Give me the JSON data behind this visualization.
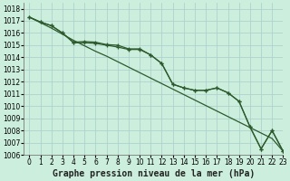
{
  "title": "Graphe pression niveau de la mer (hPa)",
  "bg_color": "#cceedd",
  "grid_color": "#aacccc",
  "line_color": "#2d5a2d",
  "xlim": [
    -0.5,
    23
  ],
  "ylim": [
    1006,
    1018.5
  ],
  "yticks": [
    1006,
    1007,
    1008,
    1009,
    1010,
    1011,
    1012,
    1013,
    1014,
    1015,
    1016,
    1017,
    1018
  ],
  "xticks": [
    0,
    1,
    2,
    3,
    4,
    5,
    6,
    7,
    8,
    9,
    10,
    11,
    12,
    13,
    14,
    15,
    16,
    17,
    18,
    19,
    20,
    21,
    22,
    23
  ],
  "series_marked1": [
    1017.3,
    1016.9,
    1016.6,
    1016.0,
    1015.2,
    1015.2,
    1015.15,
    1015.0,
    1014.85,
    1014.65,
    1014.65,
    1014.2,
    1013.5,
    1011.8,
    1011.5,
    1011.3,
    1011.3,
    1011.5,
    1011.1,
    1010.4,
    1008.3,
    1006.5,
    1008.0,
    1006.3
  ],
  "series_marked2": [
    1017.3,
    1016.9,
    1016.6,
    1016.0,
    1015.25,
    1015.3,
    1015.25,
    1015.05,
    1015.0,
    1014.7,
    1014.7,
    1014.2,
    1013.5,
    1011.8,
    1011.5,
    1011.3,
    1011.3,
    1011.5,
    1011.1,
    1010.4,
    1008.3,
    1006.5,
    1008.0,
    1006.3
  ],
  "series_plain": [
    1017.3,
    1016.85,
    1016.4,
    1015.9,
    1015.4,
    1014.95,
    1014.5,
    1014.1,
    1013.65,
    1013.2,
    1012.75,
    1012.3,
    1011.85,
    1011.4,
    1010.95,
    1010.5,
    1010.05,
    1009.6,
    1009.15,
    1008.7,
    1008.25,
    1007.8,
    1007.35,
    1006.3
  ],
  "title_fontsize": 7,
  "tick_fontsize": 5.5
}
